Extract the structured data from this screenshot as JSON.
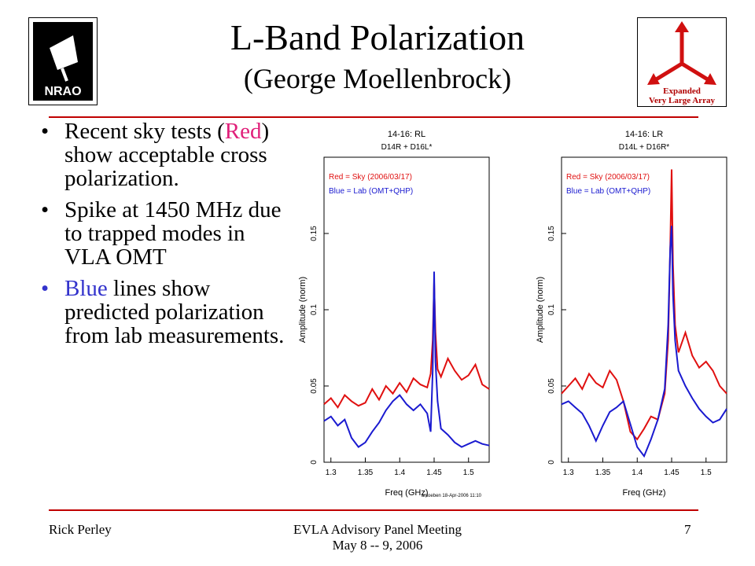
{
  "header": {
    "title": "L-Band Polarization",
    "subtitle": "(George Moellenbrock)",
    "logo_left_text": "NRAO",
    "logo_right_text_1": "Expanded",
    "logo_right_text_2": "Very Large Array"
  },
  "bullets": [
    {
      "text_parts": [
        "Recent sky tests (",
        "Red",
        ") show acceptable cross polarization."
      ]
    },
    {
      "text": "Spike at 1450 MHz due to trapped modes in VLA OMT"
    },
    {
      "text_parts": [
        "Blue",
        " lines show predicted polarization from lab measurements."
      ]
    }
  ],
  "footer": {
    "left": "Rick Perley",
    "center_line1": "EVLA Advisory Panel Meeting",
    "center_line2": "May 8 -- 9, 2006",
    "right": "7"
  },
  "colors": {
    "rule": "#c00000",
    "sky": "#e01010",
    "lab": "#1a1ad0",
    "red_text": "#e0207a",
    "blue_text": "#3333cc"
  },
  "chart_data": [
    {
      "type": "line",
      "title": "14-16: RL",
      "subtitle": "D14R + D16L*",
      "xlabel": "Freq (GHz)",
      "ylabel": "Amplitude (norm)",
      "xlim": [
        1.29,
        1.53
      ],
      "ylim": [
        0,
        0.2
      ],
      "xticks": [
        "1.3",
        "1.35",
        "1.4",
        "1.45",
        "1.5"
      ],
      "yticks": [
        "0",
        "0.05",
        "0.1",
        "0.15"
      ],
      "legend": [
        "Red = Sky (2006/03/17)",
        "Blue = Lab (OMT+QHP)"
      ],
      "footnote": "amoeben 18-Apr-2006 11:10",
      "series": [
        {
          "name": "Red = Sky (2006/03/17)",
          "color": "#e01010",
          "x": [
            1.29,
            1.3,
            1.31,
            1.32,
            1.33,
            1.34,
            1.35,
            1.36,
            1.37,
            1.38,
            1.39,
            1.4,
            1.41,
            1.42,
            1.43,
            1.44,
            1.445,
            1.448,
            1.45,
            1.452,
            1.455,
            1.46,
            1.47,
            1.48,
            1.49,
            1.5,
            1.51,
            1.52,
            1.53
          ],
          "y": [
            0.038,
            0.042,
            0.036,
            0.044,
            0.04,
            0.037,
            0.039,
            0.048,
            0.041,
            0.05,
            0.045,
            0.052,
            0.046,
            0.055,
            0.051,
            0.049,
            0.058,
            0.08,
            0.118,
            0.085,
            0.061,
            0.056,
            0.068,
            0.06,
            0.054,
            0.057,
            0.064,
            0.051,
            0.048
          ]
        },
        {
          "name": "Blue = Lab (OMT+QHP)",
          "color": "#1a1ad0",
          "x": [
            1.29,
            1.3,
            1.31,
            1.32,
            1.33,
            1.34,
            1.35,
            1.36,
            1.37,
            1.38,
            1.39,
            1.4,
            1.41,
            1.42,
            1.43,
            1.44,
            1.445,
            1.448,
            1.45,
            1.452,
            1.455,
            1.46,
            1.47,
            1.48,
            1.49,
            1.5,
            1.51,
            1.52,
            1.53
          ],
          "y": [
            0.027,
            0.03,
            0.024,
            0.028,
            0.016,
            0.01,
            0.013,
            0.02,
            0.026,
            0.034,
            0.04,
            0.044,
            0.038,
            0.034,
            0.038,
            0.032,
            0.02,
            0.06,
            0.125,
            0.066,
            0.04,
            0.022,
            0.018,
            0.013,
            0.01,
            0.012,
            0.014,
            0.012,
            0.011
          ]
        }
      ]
    },
    {
      "type": "line",
      "title": "14-16: LR",
      "subtitle": "D14L + D16R*",
      "xlabel": "Freq (GHz)",
      "ylabel": "Amplitude (norm)",
      "xlim": [
        1.29,
        1.53
      ],
      "ylim": [
        0,
        0.2
      ],
      "xticks": [
        "1.3",
        "1.35",
        "1.4",
        "1.45",
        "1.5"
      ],
      "yticks": [
        "0",
        "0.05",
        "0.1",
        "0.15"
      ],
      "legend": [
        "Red = Sky (2006/03/17)",
        "Blue = Lab (OMT+QHP)"
      ],
      "series": [
        {
          "name": "Red = Sky (2006/03/17)",
          "color": "#e01010",
          "x": [
            1.29,
            1.3,
            1.31,
            1.32,
            1.33,
            1.34,
            1.35,
            1.36,
            1.37,
            1.38,
            1.39,
            1.4,
            1.41,
            1.42,
            1.43,
            1.44,
            1.445,
            1.448,
            1.45,
            1.452,
            1.455,
            1.46,
            1.47,
            1.48,
            1.49,
            1.5,
            1.51,
            1.52,
            1.53
          ],
          "y": [
            0.045,
            0.05,
            0.055,
            0.048,
            0.058,
            0.052,
            0.049,
            0.06,
            0.054,
            0.04,
            0.02,
            0.015,
            0.022,
            0.03,
            0.028,
            0.045,
            0.08,
            0.14,
            0.192,
            0.13,
            0.09,
            0.072,
            0.085,
            0.07,
            0.062,
            0.066,
            0.06,
            0.05,
            0.045
          ]
        },
        {
          "name": "Blue = Lab (OMT+QHP)",
          "color": "#1a1ad0",
          "x": [
            1.29,
            1.3,
            1.31,
            1.32,
            1.33,
            1.34,
            1.35,
            1.36,
            1.37,
            1.38,
            1.39,
            1.4,
            1.41,
            1.42,
            1.43,
            1.44,
            1.445,
            1.448,
            1.45,
            1.452,
            1.455,
            1.46,
            1.47,
            1.48,
            1.49,
            1.5,
            1.51,
            1.52,
            1.53
          ],
          "y": [
            0.038,
            0.04,
            0.036,
            0.032,
            0.024,
            0.014,
            0.024,
            0.033,
            0.036,
            0.04,
            0.025,
            0.01,
            0.004,
            0.015,
            0.028,
            0.048,
            0.09,
            0.14,
            0.155,
            0.11,
            0.08,
            0.06,
            0.05,
            0.042,
            0.035,
            0.03,
            0.026,
            0.028,
            0.035
          ]
        }
      ]
    }
  ]
}
